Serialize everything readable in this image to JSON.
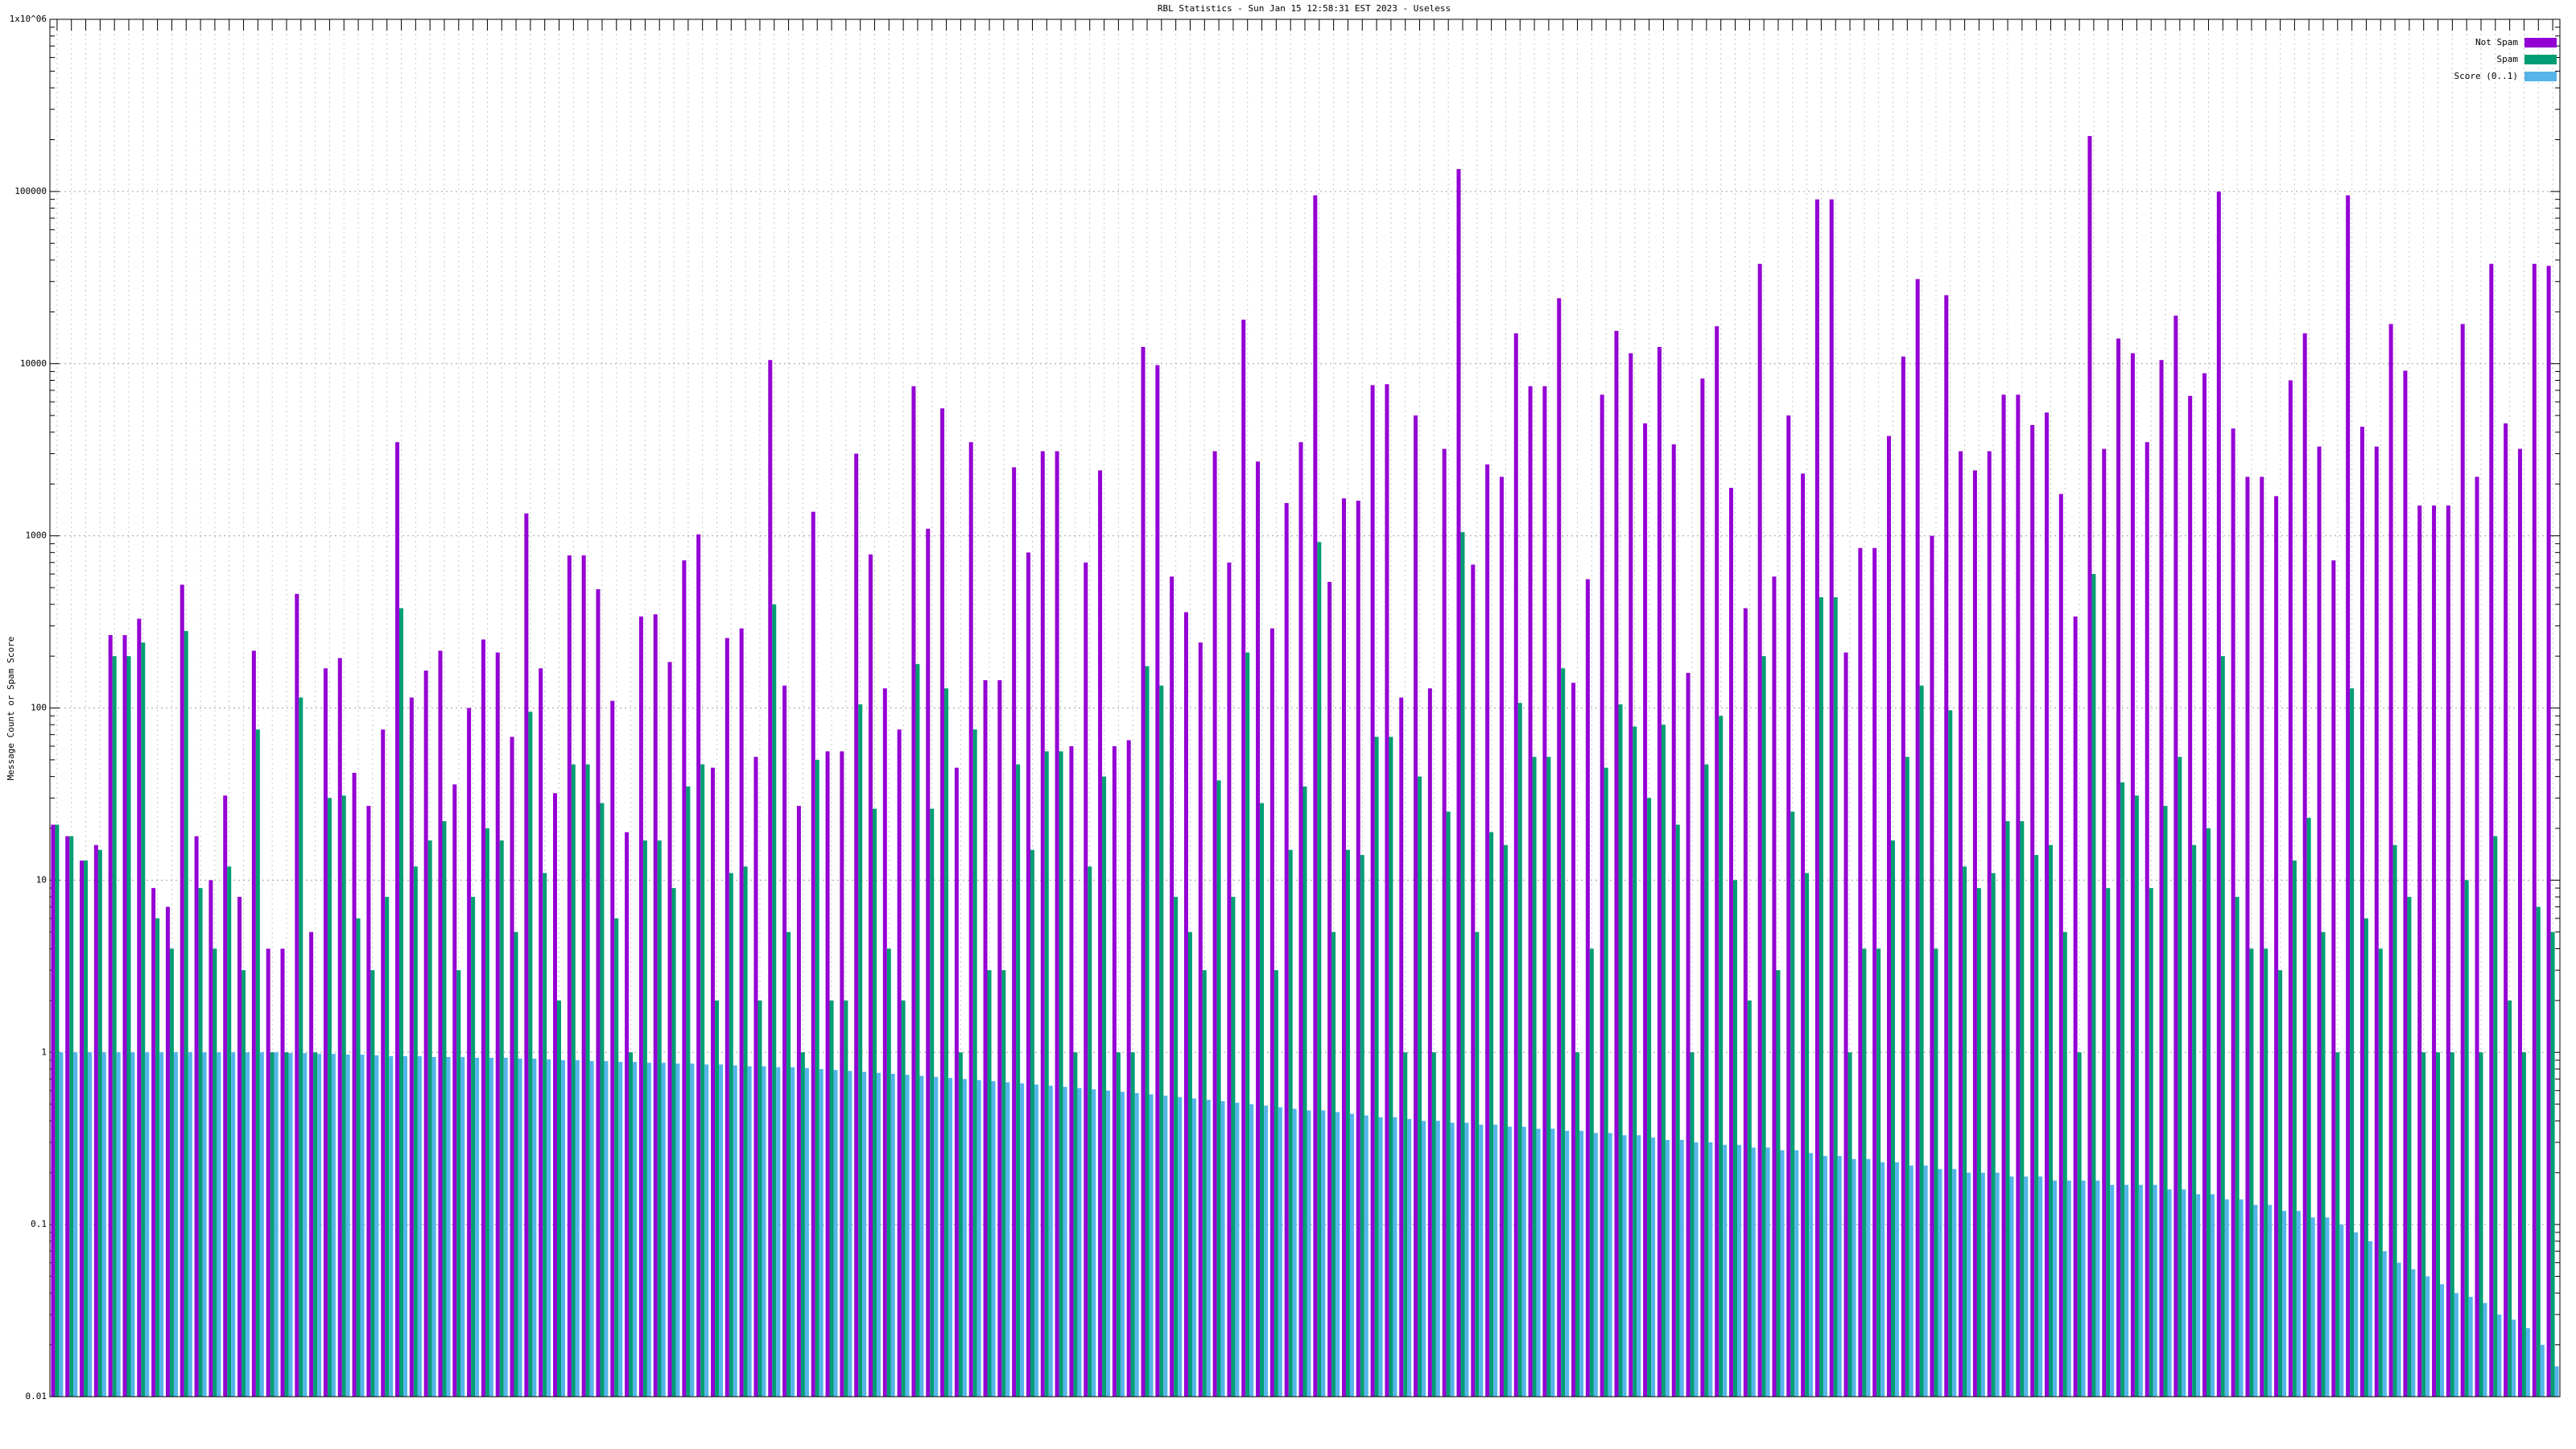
{
  "chart_data": {
    "type": "bar",
    "title": "RBL Statistics - Sun Jan 15 12:58:31 EST 2023 - Useless",
    "y_label": "Message Count or Spam Score",
    "log_scale": true,
    "grid": true,
    "legend": "top-right",
    "ylim": [
      0.01,
      1000000
    ],
    "yticks": [
      0.01,
      0.1,
      1,
      10,
      100,
      1000,
      10000,
      100000,
      {
        "value": 1000000,
        "label": "1x10^06"
      }
    ],
    "categories": [
      null,
      null,
      null,
      null,
      null,
      null,
      null,
      null,
      null,
      null,
      null,
      null,
      null,
      null,
      null,
      null,
      null,
      null,
      null,
      null,
      null,
      null,
      null,
      null,
      null,
      null,
      null,
      null,
      null,
      null,
      null,
      null,
      null,
      null,
      null,
      null,
      null,
      null,
      null,
      null,
      null,
      null,
      null,
      null,
      null,
      null,
      null,
      null,
      null,
      null,
      null,
      null,
      null,
      null,
      null,
      null,
      null,
      null,
      null,
      null,
      null,
      null,
      null,
      null,
      null,
      null,
      null,
      null,
      null,
      null,
      null,
      null,
      null,
      null,
      null,
      null,
      null,
      null,
      null,
      null,
      null,
      null,
      null,
      null,
      null,
      null,
      null,
      null,
      null,
      null,
      null,
      null,
      null,
      null,
      null,
      null,
      null,
      null,
      null,
      null,
      null,
      null,
      null,
      null,
      null,
      null,
      null,
      null,
      null,
      null,
      null,
      null,
      null,
      null,
      null,
      null,
      null,
      null,
      null,
      null,
      null,
      null,
      null,
      null,
      null,
      null,
      null,
      null,
      null,
      null,
      null,
      null,
      null,
      null,
      null,
      null,
      null,
      null,
      null,
      null,
      null,
      null,
      null,
      null,
      null,
      null,
      null,
      null,
      null,
      null,
      null,
      null,
      null,
      null,
      null,
      null,
      null,
      null,
      null,
      null,
      null,
      null,
      null,
      null,
      null,
      null,
      null,
      null,
      null,
      null,
      null,
      null,
      null,
      null,
      null
    ],
    "series": [
      {
        "name": "Not Spam",
        "color": "#9400d3",
        "values": [
          21,
          18,
          13,
          16,
          265,
          265,
          330,
          9,
          7,
          520,
          18,
          10,
          31,
          8,
          215,
          4,
          4,
          460,
          5,
          170,
          195,
          42,
          27,
          75,
          3500,
          115,
          165,
          215,
          36,
          100,
          250,
          210,
          68,
          1350,
          170,
          32,
          770,
          770,
          490,
          110,
          19,
          340,
          350,
          185,
          720,
          1020,
          45,
          255,
          290,
          52,
          10500,
          135,
          27,
          1380,
          56,
          56,
          3000,
          780,
          130,
          75,
          7400,
          1100,
          5500,
          45,
          3500,
          145,
          145,
          2500,
          800,
          3100,
          3100,
          60,
          700,
          2400,
          60,
          65,
          12500,
          9800,
          580,
          360,
          240,
          3100,
          700,
          18000,
          2700,
          290,
          1550,
          3500,
          95000,
          540,
          1650,
          1600,
          7500,
          7600,
          115,
          5000,
          130,
          3200,
          135000,
          680,
          2600,
          2200,
          15000,
          7400,
          7400,
          24000,
          140,
          560,
          6600,
          15500,
          11500,
          4500,
          12500,
          3400,
          160,
          8200,
          16500,
          1900,
          380,
          38000,
          580,
          5000,
          2300,
          90000,
          90000,
          210,
          850,
          850,
          3800,
          11000,
          31000,
          1000,
          25000,
          3100,
          2400,
          3100,
          6600,
          6600,
          4400,
          5200,
          1750,
          340,
          210000,
          3200,
          14000,
          11500,
          3500,
          10500,
          19000,
          6500,
          8800,
          100000,
          4200,
          2200,
          2200,
          1700,
          8000,
          15000,
          3300,
          720,
          95000,
          4300,
          3300,
          17000,
          9100,
          1500,
          1500,
          1500,
          17000,
          2200,
          38000,
          4500,
          3200,
          38000,
          37000
        ]
      },
      {
        "name": "Spam",
        "color": "#009e73",
        "values": [
          21,
          18,
          13,
          15,
          200,
          200,
          240,
          6,
          4,
          280,
          9,
          4,
          12,
          3,
          75,
          1,
          1,
          115,
          1,
          30,
          31,
          6,
          3,
          8,
          380,
          12,
          17,
          22,
          3,
          8,
          20,
          17,
          5,
          95,
          11,
          2,
          47,
          47,
          28,
          6,
          1,
          17,
          17,
          9,
          35,
          47,
          2,
          11,
          12,
          2,
          400,
          5,
          1,
          50,
          2,
          2,
          105,
          26,
          4,
          2,
          180,
          26,
          130,
          1,
          75,
          3,
          3,
          47,
          15,
          56,
          56,
          1,
          12,
          40,
          1,
          1,
          175,
          135,
          8,
          5,
          3,
          38,
          8,
          210,
          28,
          3,
          15,
          35,
          920,
          5,
          15,
          14,
          68,
          68,
          1,
          40,
          1,
          25,
          1050,
          5,
          19,
          16,
          107,
          52,
          52,
          170,
          1,
          4,
          45,
          105,
          78,
          30,
          80,
          21,
          1,
          47,
          90,
          10,
          2,
          200,
          3,
          25,
          11,
          440,
          440,
          1,
          4,
          4,
          17,
          52,
          135,
          4,
          97,
          12,
          9,
          11,
          22,
          22,
          14,
          16,
          5,
          1,
          600,
          9,
          37,
          31,
          9,
          27,
          52,
          16,
          20,
          200,
          8,
          4,
          4,
          3,
          13,
          23,
          5,
          1,
          130,
          6,
          4,
          16,
          8,
          1,
          1,
          1,
          10,
          1,
          18,
          2,
          1,
          7,
          5
        ]
      },
      {
        "name": "Score (0..1)",
        "color": "#56b4e9",
        "values": [
          1,
          1,
          1,
          1,
          1,
          1,
          1,
          1,
          1,
          1,
          1,
          1,
          1,
          1,
          1,
          1,
          0.99,
          0.99,
          0.98,
          0.98,
          0.97,
          0.97,
          0.96,
          0.95,
          0.95,
          0.95,
          0.94,
          0.94,
          0.94,
          0.93,
          0.93,
          0.93,
          0.92,
          0.92,
          0.91,
          0.9,
          0.9,
          0.89,
          0.89,
          0.88,
          0.88,
          0.87,
          0.87,
          0.86,
          0.86,
          0.85,
          0.85,
          0.84,
          0.83,
          0.83,
          0.82,
          0.82,
          0.81,
          0.8,
          0.79,
          0.78,
          0.77,
          0.76,
          0.75,
          0.74,
          0.73,
          0.72,
          0.71,
          0.7,
          0.69,
          0.68,
          0.67,
          0.66,
          0.65,
          0.64,
          0.63,
          0.62,
          0.61,
          0.6,
          0.59,
          0.58,
          0.57,
          0.56,
          0.55,
          0.54,
          0.53,
          0.52,
          0.51,
          0.5,
          0.49,
          0.48,
          0.47,
          0.46,
          0.46,
          0.45,
          0.44,
          0.43,
          0.42,
          0.42,
          0.41,
          0.4,
          0.4,
          0.39,
          0.39,
          0.38,
          0.38,
          0.37,
          0.37,
          0.36,
          0.36,
          0.35,
          0.35,
          0.34,
          0.34,
          0.33,
          0.33,
          0.32,
          0.31,
          0.31,
          0.3,
          0.3,
          0.29,
          0.29,
          0.28,
          0.28,
          0.27,
          0.27,
          0.26,
          0.25,
          0.25,
          0.24,
          0.24,
          0.23,
          0.23,
          0.22,
          0.22,
          0.21,
          0.21,
          0.2,
          0.2,
          0.2,
          0.19,
          0.19,
          0.19,
          0.18,
          0.18,
          0.18,
          0.18,
          0.17,
          0.17,
          0.17,
          0.17,
          0.16,
          0.16,
          0.15,
          0.15,
          0.14,
          0.14,
          0.13,
          0.13,
          0.12,
          0.12,
          0.11,
          0.11,
          0.1,
          0.09,
          0.08,
          0.07,
          0.06,
          0.055,
          0.05,
          0.045,
          0.04,
          0.038,
          0.035,
          0.03,
          0.028,
          0.025,
          0.02,
          0.015
        ]
      }
    ]
  }
}
